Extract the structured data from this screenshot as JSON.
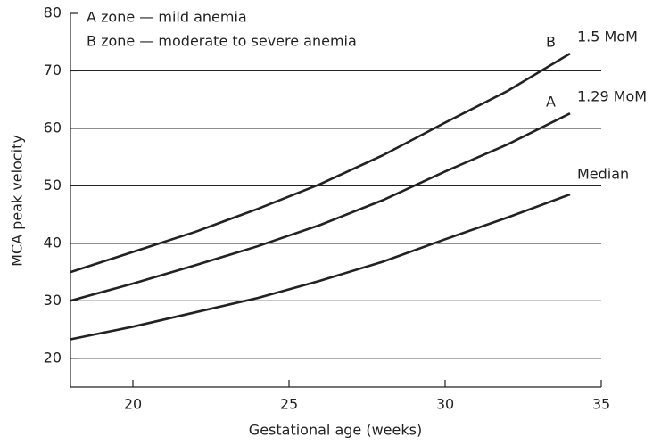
{
  "chart_data": {
    "type": "line",
    "xlabel": "Gestational age (weeks)",
    "ylabel": "MCA peak velocity",
    "annotations": [
      "A zone — mild anemia",
      "B zone — moderate to severe anemia",
      "A",
      "B"
    ],
    "x": [
      18,
      20,
      22,
      24,
      26,
      28,
      30,
      32,
      34
    ],
    "series": [
      {
        "name": "Median",
        "color": "#222222",
        "values": [
          23.3,
          25.5,
          28,
          30.5,
          33.5,
          36.8,
          40.7,
          44.5,
          48.5
        ]
      },
      {
        "name": "1.29 MoM",
        "color": "#222222",
        "values": [
          30,
          33,
          36.2,
          39.5,
          43.2,
          47.5,
          52.5,
          57.2,
          62.6
        ]
      },
      {
        "name": "1.5 MoM",
        "color": "#222222",
        "values": [
          35,
          38.5,
          42,
          46,
          50.3,
          55.3,
          61,
          66.5,
          73
        ]
      }
    ],
    "xlim": [
      18,
      35
    ],
    "xticks": [
      20,
      25,
      30,
      35
    ],
    "ylim": [
      15,
      80
    ],
    "yticks": [
      20,
      30,
      40,
      50,
      60,
      70,
      80
    ],
    "grid": true
  }
}
